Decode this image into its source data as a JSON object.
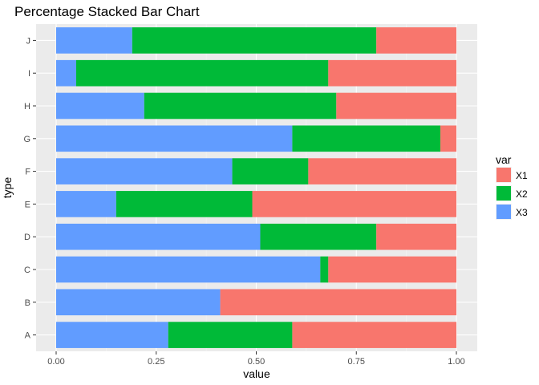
{
  "chart_data": {
    "type": "bar",
    "orientation": "horizontal",
    "stacked": "percent",
    "title": "Percentage Stacked Bar Chart",
    "xlabel": "value",
    "ylabel": "type",
    "xlim": [
      0,
      1
    ],
    "x_ticks": [
      "0.00",
      "0.25",
      "0.50",
      "0.75",
      "1.00"
    ],
    "categories": [
      "A",
      "B",
      "C",
      "D",
      "E",
      "F",
      "G",
      "H",
      "I",
      "J"
    ],
    "legend": {
      "title": "var",
      "position": "right"
    },
    "grid": true,
    "series": [
      {
        "name": "X3",
        "color": "#619CFF",
        "values": [
          0.28,
          0.41,
          0.66,
          0.51,
          0.15,
          0.44,
          0.59,
          0.22,
          0.05,
          0.19
        ]
      },
      {
        "name": "X2",
        "color": "#00BA38",
        "values": [
          0.31,
          0.0,
          0.02,
          0.29,
          0.34,
          0.19,
          0.37,
          0.48,
          0.63,
          0.61
        ]
      },
      {
        "name": "X1",
        "color": "#F8766D",
        "values": [
          0.41,
          0.59,
          0.32,
          0.2,
          0.51,
          0.37,
          0.04,
          0.3,
          0.32,
          0.2
        ]
      }
    ],
    "legend_order": [
      "X1",
      "X2",
      "X3"
    ]
  }
}
